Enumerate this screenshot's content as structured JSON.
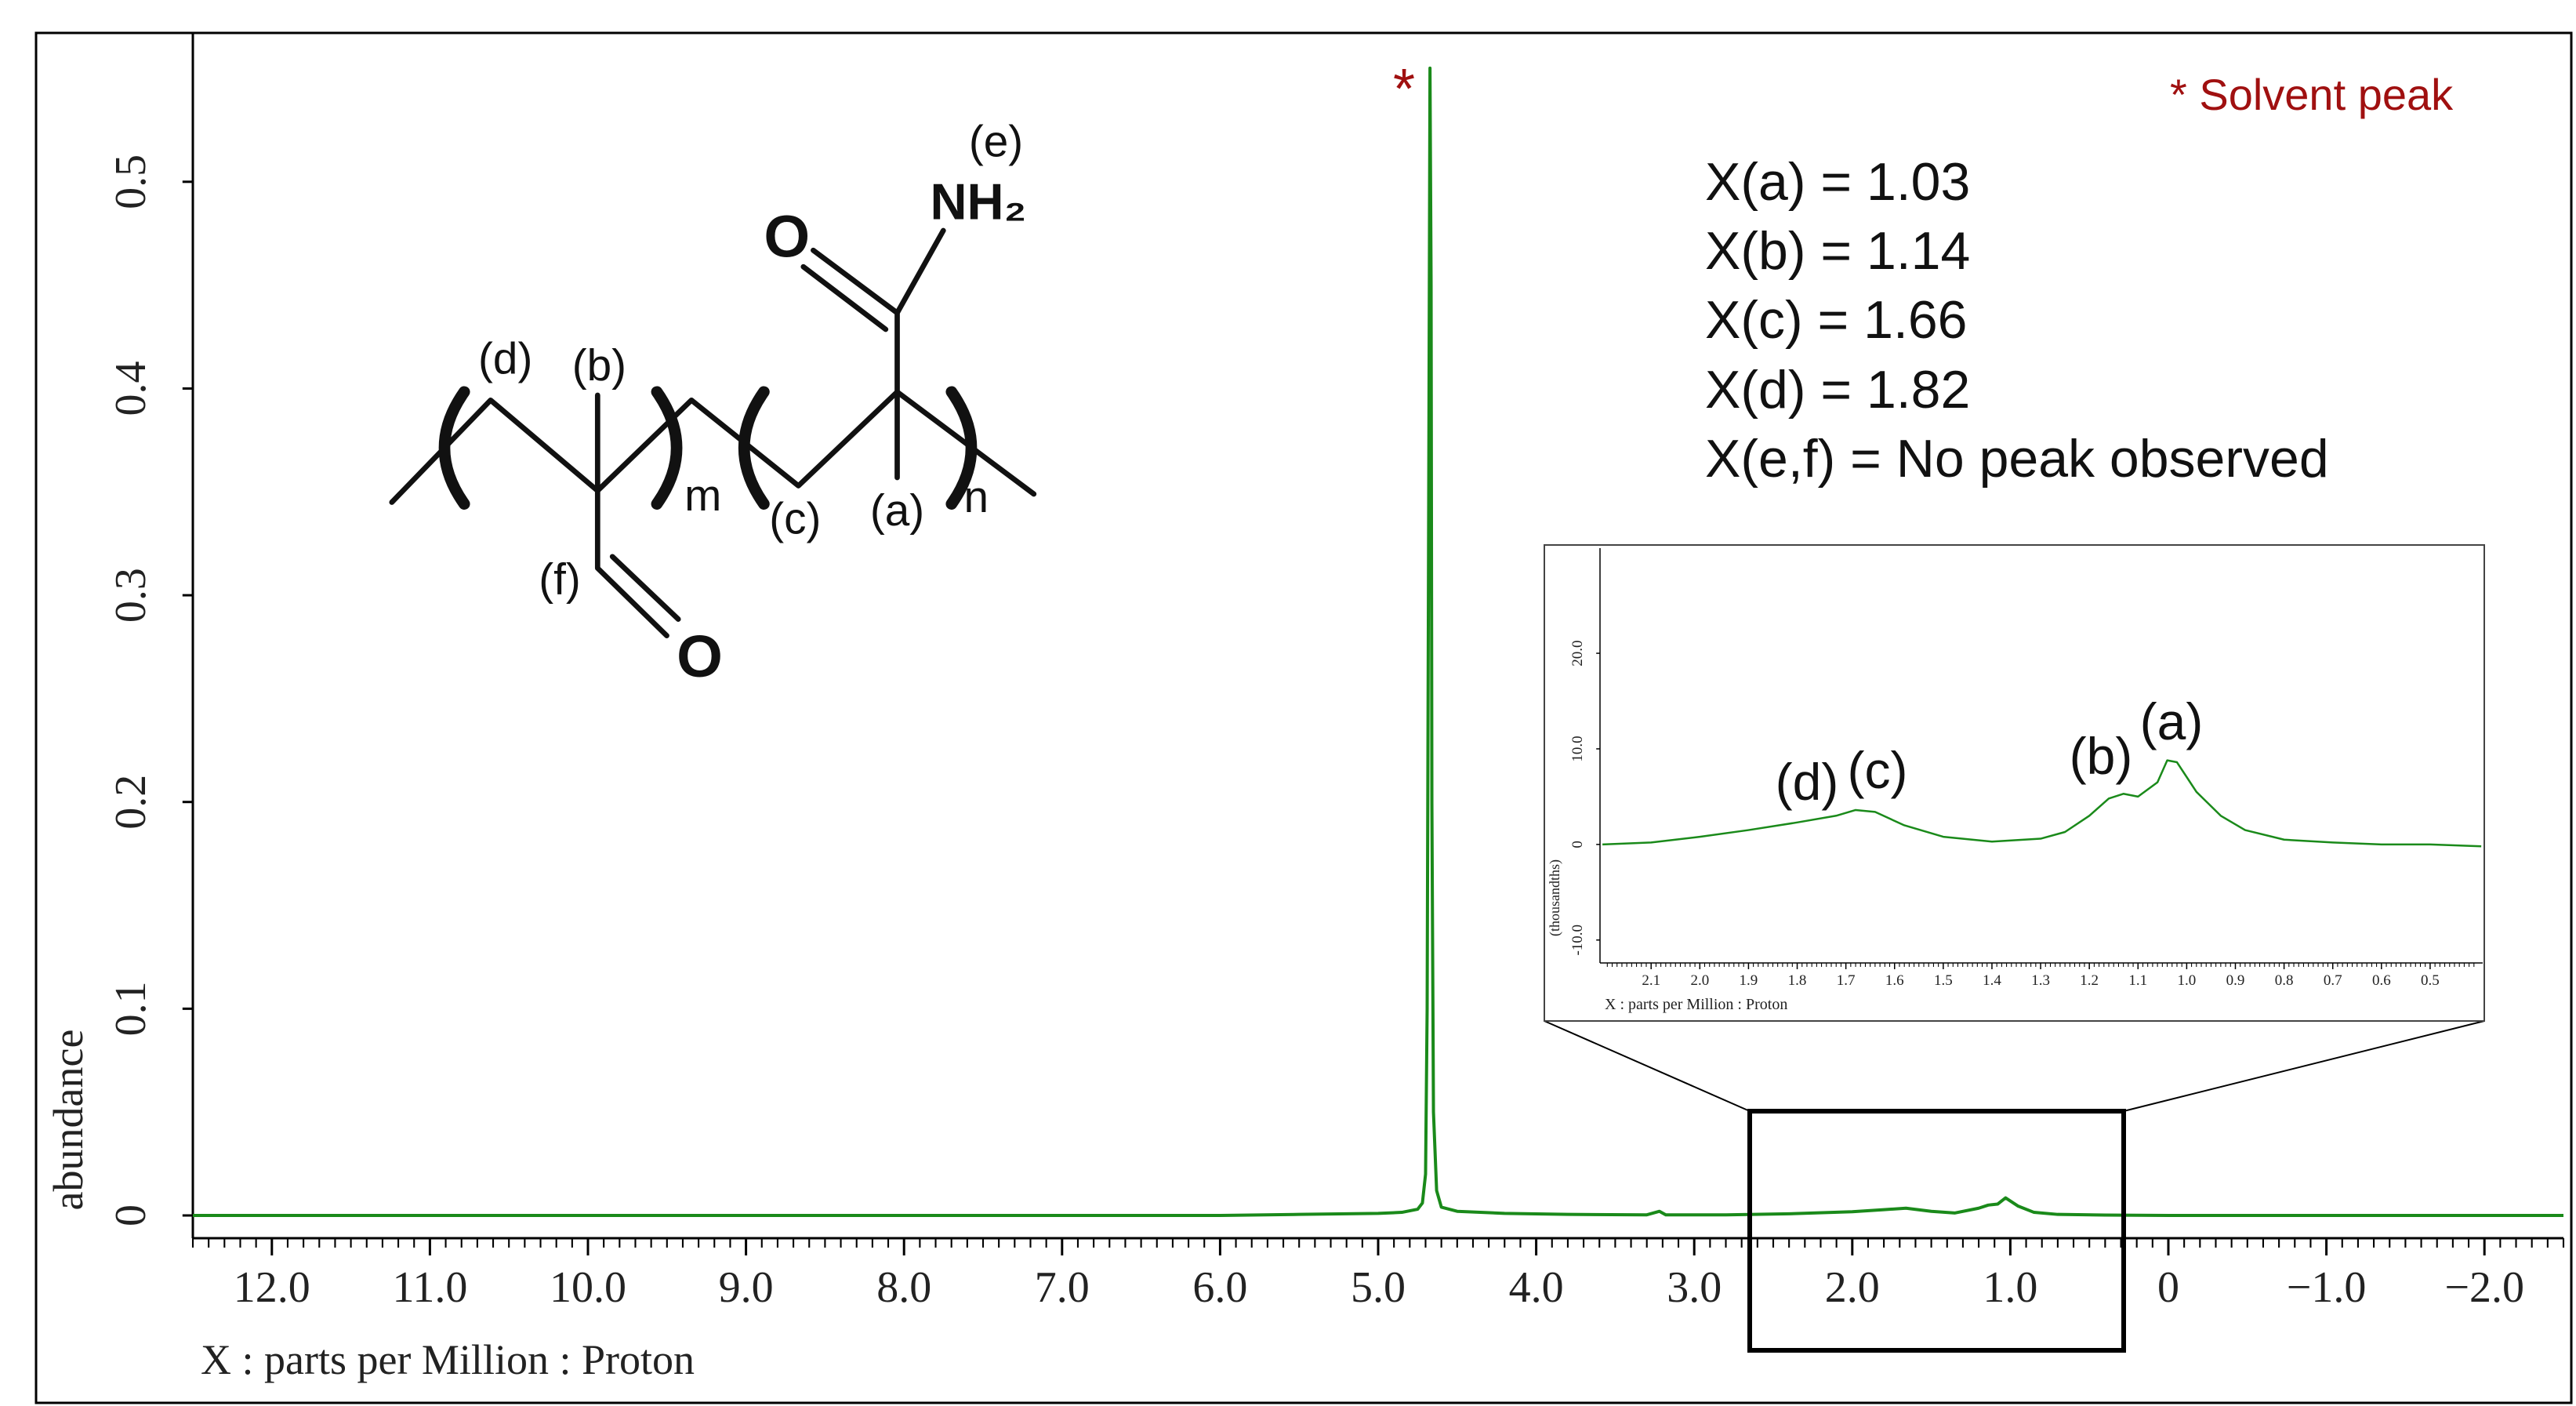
{
  "chart_data": [
    {
      "type": "line",
      "color": "#1a8a1a",
      "xlabel": "X : parts per Million : Proton",
      "ylabel": "abundance",
      "xlim": [
        12.5,
        -2.5
      ],
      "ylim": [
        -0.011,
        0.572
      ],
      "xticks": [
        {
          "value": 12,
          "label": "12.0"
        },
        {
          "value": 11,
          "label": "11.0"
        },
        {
          "value": 10,
          "label": "10.0"
        },
        {
          "value": 9,
          "label": "9.0"
        },
        {
          "value": 8,
          "label": "8.0"
        },
        {
          "value": 7,
          "label": "7.0"
        },
        {
          "value": 6,
          "label": "6.0"
        },
        {
          "value": 5,
          "label": "5.0"
        },
        {
          "value": 4,
          "label": "4.0"
        },
        {
          "value": 3,
          "label": "3.0"
        },
        {
          "value": 2,
          "label": "2.0"
        },
        {
          "value": 1,
          "label": "1.0"
        },
        0,
        {
          "value": -1,
          "label": "−1.0"
        },
        {
          "value": -2,
          "label": "−2.0"
        }
      ],
      "yticks": [
        0,
        0.1,
        0.2,
        0.3,
        0.4,
        0.5
      ],
      "x": [
        12.5,
        12,
        11,
        10,
        9,
        8,
        7,
        6,
        5.5,
        5,
        4.85,
        4.75,
        4.72,
        4.7,
        4.69,
        4.68,
        4.672,
        4.665,
        4.66,
        4.65,
        4.63,
        4.6,
        4.5,
        4.2,
        3.8,
        3.3,
        3.22,
        3.18,
        2.8,
        2.4,
        2.0,
        1.8,
        1.66,
        1.5,
        1.35,
        1.2,
        1.14,
        1.08,
        1.03,
        0.95,
        0.85,
        0.7,
        0.4,
        0,
        -1,
        -2,
        -2.5
      ],
      "values": [
        0,
        0,
        0,
        0,
        0,
        0,
        0,
        0,
        0.0005,
        0.001,
        0.0015,
        0.003,
        0.006,
        0.02,
        0.1,
        0.35,
        0.555,
        0.45,
        0.2,
        0.05,
        0.012,
        0.004,
        0.002,
        0.001,
        0.0005,
        0.0003,
        0.002,
        0.0003,
        0.0003,
        0.0008,
        0.0018,
        0.0028,
        0.0035,
        0.002,
        0.0012,
        0.0035,
        0.005,
        0.0055,
        0.0085,
        0.0045,
        0.0015,
        0.0005,
        0.0002,
        0,
        0,
        0,
        0
      ],
      "annotations": [
        "*",
        "* Solvent peak",
        "X(a) = 1.03",
        "X(b) = 1.14",
        "X(c) = 1.66",
        "X(d) = 1.82",
        "X(e,f) = No peak observed"
      ]
    },
    {
      "type": "line",
      "color": "#1a8a1a",
      "xlabel": "X : parts per Million : Proton",
      "ylabel": "(thousandths)",
      "xlim": [
        2.205,
        0.392
      ],
      "ylim": [
        -12.4,
        31
      ],
      "xticks": [
        2.1,
        {
          "value": 2,
          "label": "2.0"
        },
        1.9,
        1.8,
        1.7,
        1.6,
        1.5,
        1.4,
        1.3,
        1.2,
        1.1,
        {
          "value": 1,
          "label": "1.0"
        },
        0.9,
        0.8,
        0.7,
        0.6,
        0.5
      ],
      "yticks": [
        {
          "value": -10,
          "label": "-10.0"
        },
        0,
        {
          "value": 10,
          "label": "10.0"
        },
        {
          "value": 20,
          "label": "20.0"
        }
      ],
      "x": [
        2.2,
        2.1,
        2.0,
        1.9,
        1.8,
        1.72,
        1.68,
        1.64,
        1.58,
        1.5,
        1.4,
        1.3,
        1.25,
        1.2,
        1.16,
        1.13,
        1.1,
        1.06,
        1.04,
        1.02,
        0.98,
        0.93,
        0.88,
        0.8,
        0.7,
        0.6,
        0.5,
        0.395
      ],
      "values": [
        0,
        0.2,
        0.8,
        1.5,
        2.3,
        3.0,
        3.6,
        3.4,
        2.0,
        0.8,
        0.3,
        0.6,
        1.3,
        3.0,
        4.8,
        5.3,
        5.0,
        6.5,
        8.8,
        8.6,
        5.5,
        3.0,
        1.5,
        0.5,
        0.2,
        0,
        0,
        -0.2
      ],
      "annotations": [
        "(d)",
        "(c)",
        "(b)",
        "(a)"
      ]
    }
  ],
  "structure": {
    "labels": [
      "(e)",
      "NH₂",
      "O",
      "(d)",
      "(b)",
      "m",
      "(c)",
      "(a)",
      "n",
      "(f)",
      "O"
    ]
  }
}
